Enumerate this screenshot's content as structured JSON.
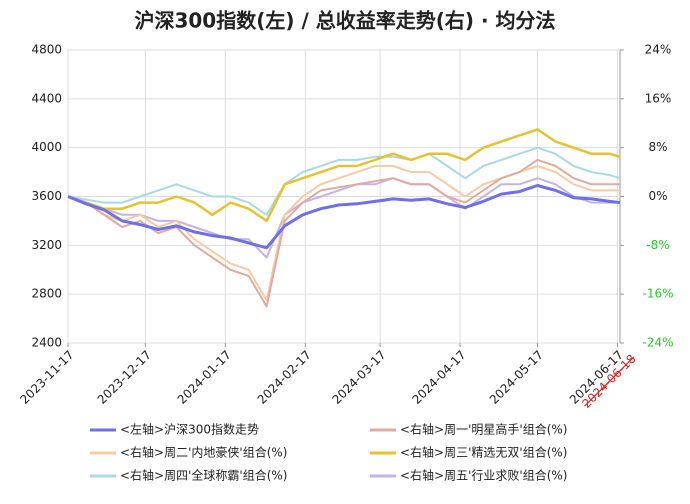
{
  "chart_data": {
    "type": "line",
    "title": "沪深300指数(左)  /  总收益率走势(右) · 均分法",
    "x": [
      "2023-11-17",
      "2023-11-24",
      "2023-12-01",
      "2023-12-08",
      "2023-12-15",
      "2023-12-22",
      "2023-12-29",
      "2024-01-05",
      "2024-01-12",
      "2024-01-19",
      "2024-01-26",
      "2024-02-02",
      "2024-02-09",
      "2024-02-16",
      "2024-02-23",
      "2024-03-01",
      "2024-03-08",
      "2024-03-15",
      "2024-03-22",
      "2024-03-29",
      "2024-04-05",
      "2024-04-12",
      "2024-04-19",
      "2024-04-26",
      "2024-05-03",
      "2024-05-10",
      "2024-05-17",
      "2024-05-24",
      "2024-05-31",
      "2024-06-07",
      "2024-06-14",
      "2024-06-18"
    ],
    "xlim": [
      "2023-11-17",
      "2024-06-18"
    ],
    "xticks": [
      "2023-11-17",
      "2023-12-17",
      "2024-01-17",
      "2024-02-17",
      "2024-03-17",
      "2024-04-17",
      "2024-05-17",
      "2024-06-17"
    ],
    "annotation": "2024-06-18",
    "ylim": [
      2400,
      4800
    ],
    "yticks": [
      2400,
      2800,
      3200,
      3600,
      4000,
      4400,
      4800
    ],
    "y2lim": [
      -24,
      24
    ],
    "y2ticks": [
      {
        "value": -24,
        "label": "-24%"
      },
      {
        "value": -16,
        "label": "-16%"
      },
      {
        "value": -8,
        "label": "-8%"
      },
      {
        "value": 0,
        "label": "0%"
      },
      {
        "value": 8,
        "label": "8%"
      },
      {
        "value": 16,
        "label": "16%"
      },
      {
        "value": 24,
        "label": "24%"
      }
    ],
    "negative_tick_color": "#22cc22",
    "grid": true,
    "series": [
      {
        "name": "<左轴>沪深300指数走势",
        "color": "#6f6fe8",
        "width": 3,
        "values": [
          3600,
          3540,
          3490,
          3400,
          3370,
          3330,
          3360,
          3310,
          3280,
          3260,
          3220,
          3180,
          3360,
          3450,
          3500,
          3530,
          3540,
          3560,
          3580,
          3570,
          3580,
          3540,
          3510,
          3560,
          3620,
          3640,
          3690,
          3650,
          3590,
          3580,
          3560,
          3550
        ]
      },
      {
        "name": "<右轴>周一'明星高手'组合(%)",
        "color": "#e0aaa0",
        "axis": "y2",
        "width": 2,
        "values": [
          0,
          -1,
          -3,
          -5,
          -4,
          -6,
          -5,
          -8,
          -10,
          -12,
          -13,
          -18,
          -4,
          -1,
          1,
          1.5,
          2,
          2.5,
          3,
          2,
          2,
          0,
          -1,
          1,
          3,
          4,
          6,
          5,
          3,
          2,
          2,
          2
        ]
      },
      {
        "name": "<右轴>周二'内地豪侠'组合(%)",
        "color": "#f8caa4",
        "axis": "y2",
        "width": 2,
        "values": [
          0,
          -1,
          -3,
          -4,
          -3,
          -5,
          -4,
          -7,
          -9,
          -11,
          -12,
          -17,
          -3,
          0,
          2,
          3,
          4,
          5,
          5,
          4,
          4,
          2,
          0,
          2,
          3,
          4,
          5,
          4,
          2,
          1,
          1,
          1
        ]
      },
      {
        "name": "<右轴>周三'精选无双'组合(%)",
        "color": "#e6c22e",
        "axis": "y2",
        "width": 2.5,
        "values": [
          0,
          -1,
          -2,
          -2,
          -1,
          -1,
          0,
          -1,
          -3,
          -1,
          -2,
          -4,
          2,
          3,
          4,
          5,
          5,
          6,
          7,
          6,
          7,
          7,
          6,
          8,
          9,
          10,
          11,
          9,
          8,
          7,
          7,
          6.5
        ]
      },
      {
        "name": "<右轴>周四'全球称霸'组合(%)",
        "color": "#a8dae2",
        "axis": "y2",
        "width": 2,
        "values": [
          0,
          -0.5,
          -1,
          -1,
          0,
          1,
          2,
          1,
          0,
          0,
          -1,
          -3,
          2,
          4,
          5,
          6,
          6,
          6.5,
          6.5,
          6,
          7,
          5,
          3,
          5,
          6,
          7,
          8,
          7,
          5,
          4,
          3.5,
          3
        ]
      },
      {
        "name": "<右轴>周五'行业求败'组合(%)",
        "color": "#c4b4e2",
        "axis": "y2",
        "width": 2,
        "values": [
          0,
          -1,
          -2,
          -3,
          -3,
          -4,
          -4,
          -5,
          -6,
          -7,
          -7,
          -10,
          -3,
          -1,
          0,
          1,
          2,
          2,
          3,
          2,
          2,
          0,
          -2,
          0,
          2,
          2,
          3,
          2,
          0,
          -1,
          -1,
          -1
        ]
      }
    ]
  }
}
